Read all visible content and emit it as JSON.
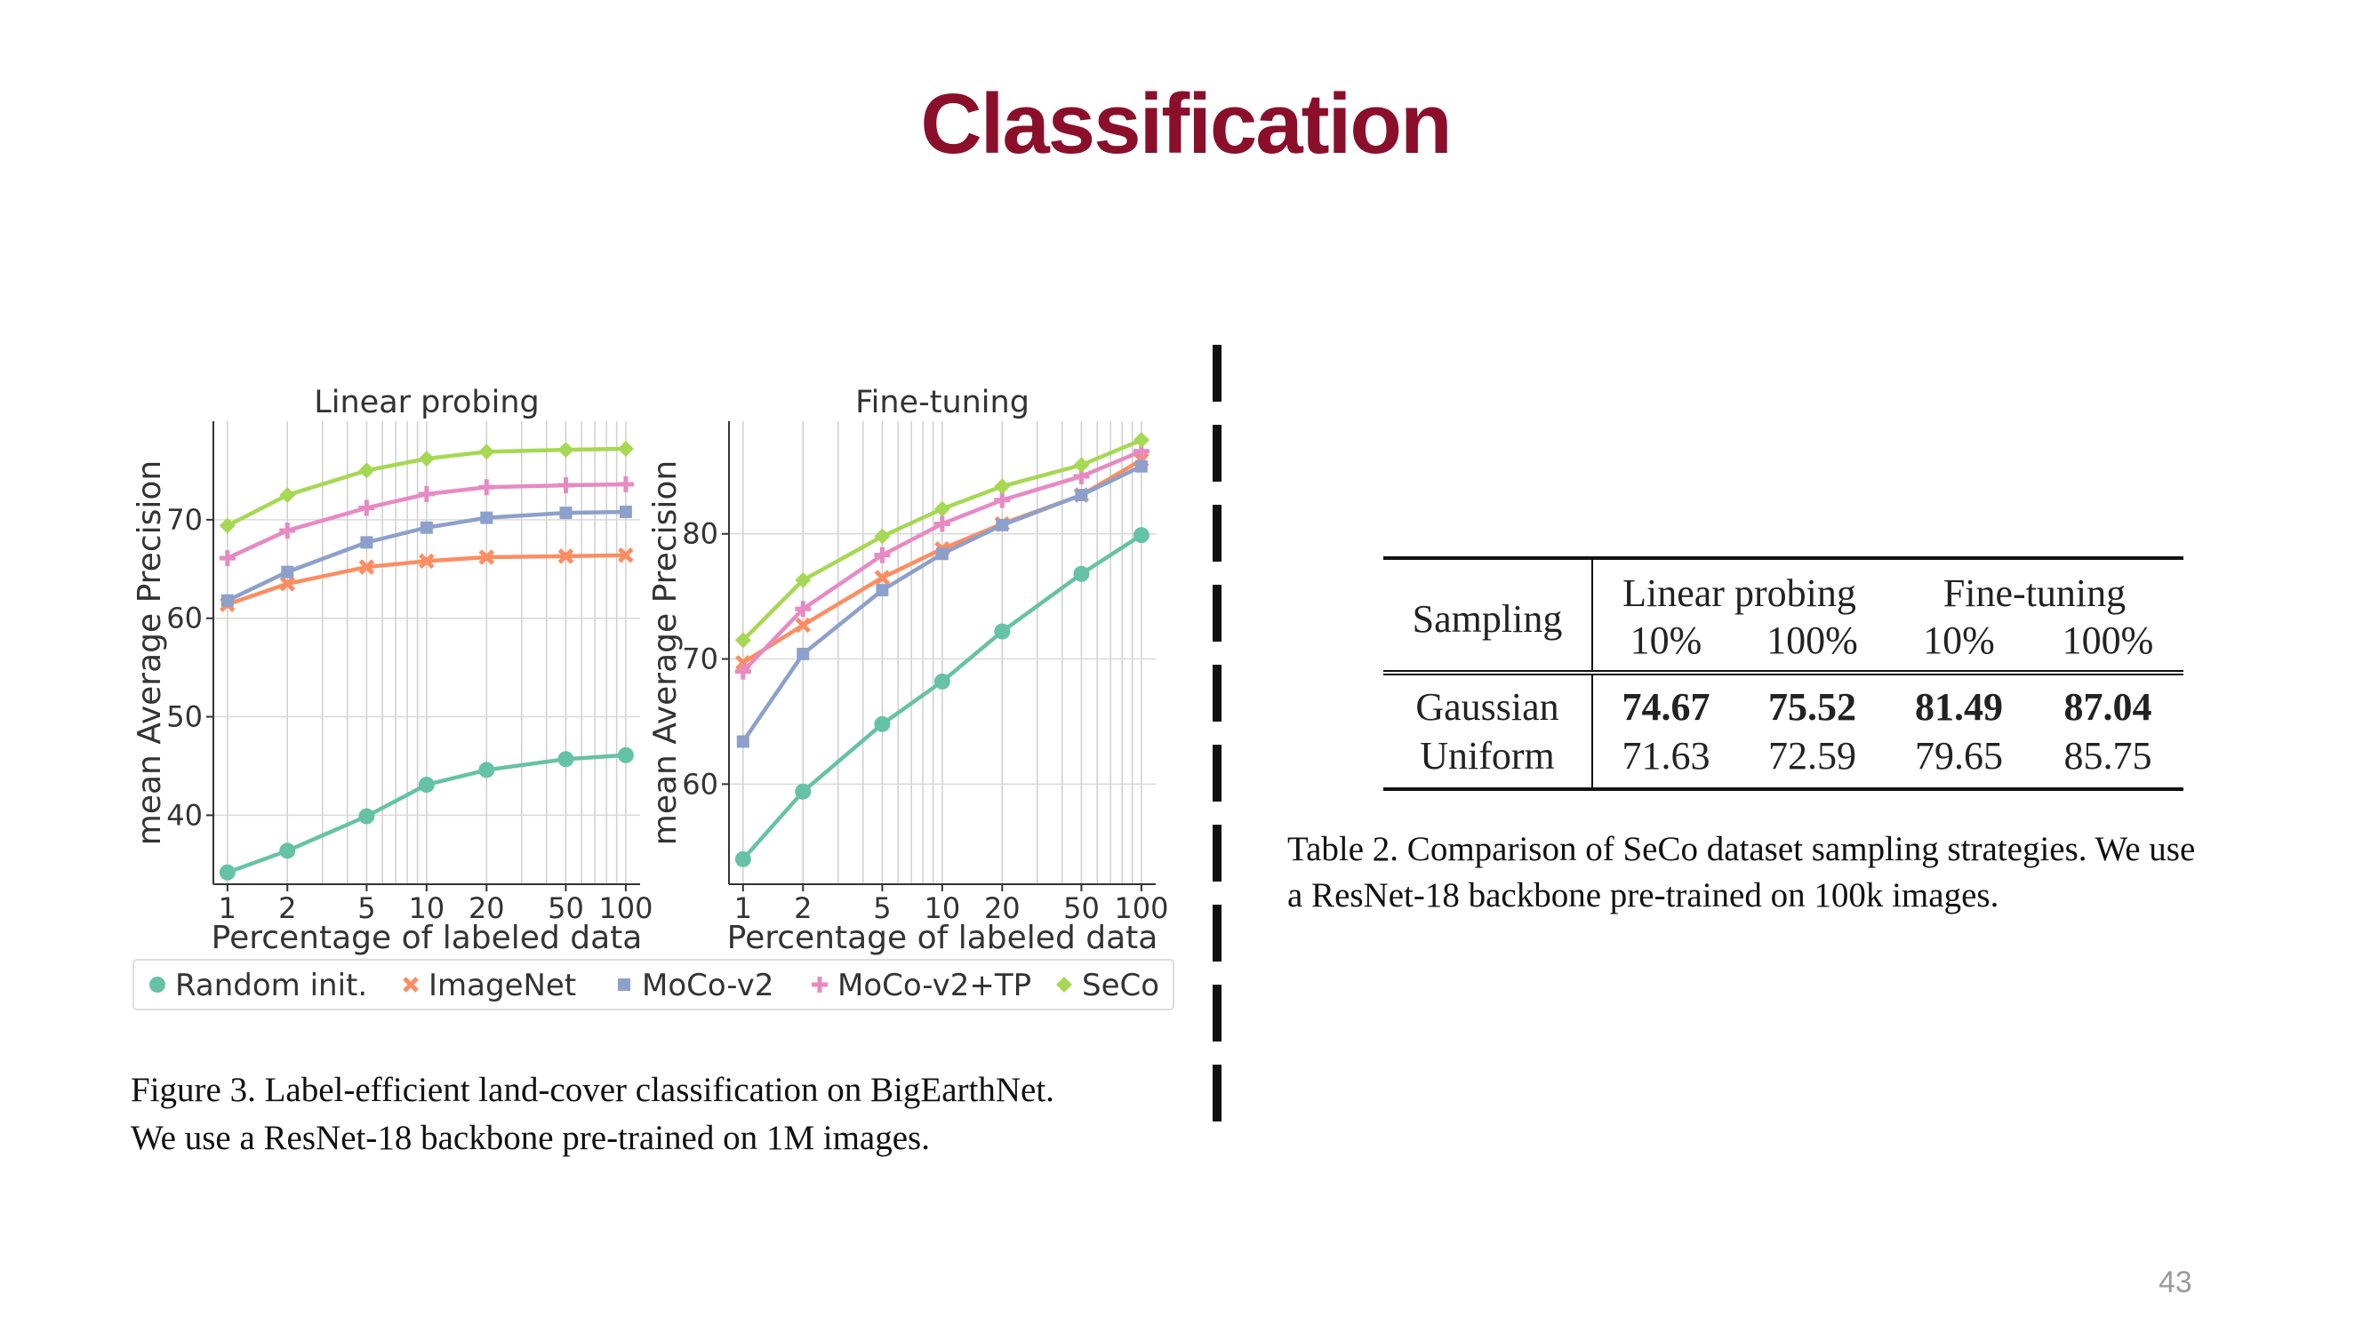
{
  "slide": {
    "title": "Classification",
    "page_number": "43"
  },
  "figure": {
    "caption_line1": "Figure 3. Label-efficient land-cover classification on BigEarthNet.",
    "caption_line2": "We use a ResNet-18 backbone pre-trained on 1M images."
  },
  "chart_data": [
    {
      "type": "line",
      "title": "Linear probing",
      "xlabel": "Percentage of labeled data",
      "ylabel": "mean Average Precision",
      "xscale": "log",
      "x": [
        1,
        2,
        5,
        10,
        20,
        50,
        100
      ],
      "xticks": [
        "1",
        "2",
        "5",
        "10",
        "20",
        "50",
        "100"
      ],
      "xlim": [
        0.85,
        118
      ],
      "ylim": [
        33,
        80
      ],
      "yticks": [
        40,
        50,
        60,
        70
      ],
      "grid": true,
      "series": [
        {
          "name": "Random init.",
          "color": "#66c2a5",
          "marker": "circle",
          "values": [
            34.2,
            36.4,
            39.9,
            43.1,
            44.6,
            45.7,
            46.1
          ]
        },
        {
          "name": "ImageNet",
          "color": "#fc8d62",
          "marker": "x",
          "values": [
            61.4,
            63.5,
            65.2,
            65.8,
            66.2,
            66.3,
            66.4
          ]
        },
        {
          "name": "MoCo-v2",
          "color": "#8da0cb",
          "marker": "square",
          "values": [
            61.8,
            64.7,
            67.7,
            69.2,
            70.2,
            70.7,
            70.8
          ]
        },
        {
          "name": "MoCo-v2+TP",
          "color": "#e78ac3",
          "marker": "plus",
          "values": [
            66.1,
            68.9,
            71.2,
            72.6,
            73.3,
            73.5,
            73.6
          ]
        },
        {
          "name": "SeCo",
          "color": "#a6d854",
          "marker": "diamond",
          "values": [
            69.4,
            72.5,
            75.0,
            76.2,
            76.9,
            77.1,
            77.2
          ]
        }
      ]
    },
    {
      "type": "line",
      "title": "Fine-tuning",
      "xlabel": "Percentage of labeled data",
      "ylabel": "mean Average Precision",
      "xscale": "log",
      "x": [
        1,
        2,
        5,
        10,
        20,
        50,
        100
      ],
      "xticks": [
        "1",
        "2",
        "5",
        "10",
        "20",
        "50",
        "100"
      ],
      "xlim": [
        0.85,
        118
      ],
      "ylim": [
        52,
        89
      ],
      "yticks": [
        60,
        70,
        80
      ],
      "grid": true,
      "series": [
        {
          "name": "Random init.",
          "color": "#66c2a5",
          "marker": "circle",
          "values": [
            54.0,
            59.4,
            64.8,
            68.2,
            72.2,
            76.8,
            79.9
          ]
        },
        {
          "name": "ImageNet",
          "color": "#fc8d62",
          "marker": "x",
          "values": [
            69.7,
            72.7,
            76.5,
            78.8,
            80.8,
            83.1,
            85.9
          ]
        },
        {
          "name": "MoCo-v2",
          "color": "#8da0cb",
          "marker": "square",
          "values": [
            63.4,
            70.4,
            75.5,
            78.4,
            80.7,
            83.1,
            85.4
          ]
        },
        {
          "name": "MoCo-v2+TP",
          "color": "#e78ac3",
          "marker": "plus",
          "values": [
            69.0,
            74.0,
            78.3,
            80.8,
            82.7,
            84.6,
            86.6
          ]
        },
        {
          "name": "SeCo",
          "color": "#a6d854",
          "marker": "diamond",
          "values": [
            71.5,
            76.3,
            79.8,
            82.0,
            83.8,
            85.5,
            87.5
          ]
        }
      ]
    }
  ],
  "legend": {
    "placement": "bottom",
    "items": [
      {
        "label": "Random init.",
        "color": "#66c2a5",
        "marker": "circle"
      },
      {
        "label": "ImageNet",
        "color": "#fc8d62",
        "marker": "x"
      },
      {
        "label": "MoCo-v2",
        "color": "#8da0cb",
        "marker": "square"
      },
      {
        "label": "MoCo-v2+TP",
        "color": "#e78ac3",
        "marker": "plus"
      },
      {
        "label": "SeCo",
        "color": "#a6d854",
        "marker": "diamond"
      }
    ]
  },
  "table": {
    "header": {
      "sampling": "Sampling",
      "group1": "Linear probing",
      "group2": "Fine-tuning",
      "sub": [
        "10%",
        "100%",
        "10%",
        "100%"
      ]
    },
    "rows": [
      {
        "label": "Gaussian",
        "values": [
          "74.67",
          "75.52",
          "81.49",
          "87.04"
        ],
        "bold": true
      },
      {
        "label": "Uniform",
        "values": [
          "71.63",
          "72.59",
          "79.65",
          "85.75"
        ],
        "bold": false
      }
    ],
    "caption_line1": "Table 2. Comparison of SeCo dataset sampling strategies. We use",
    "caption_line2": "a ResNet-18 backbone pre-trained on 100k images."
  }
}
